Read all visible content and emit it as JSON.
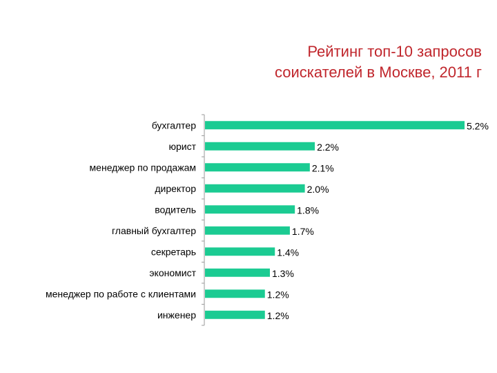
{
  "title_lines": [
    "Рейтинг топ-10 запросов",
    "соискателей в Москве, 2011 г"
  ],
  "colors": {
    "bar": "#1bcb92",
    "title": "#c0262c",
    "axis": "#9a9a9a",
    "text": "#000000"
  },
  "chart_data": {
    "type": "bar",
    "orientation": "horizontal",
    "title": "Рейтинг топ-10 запросов соискателей в Москве, 2011 г",
    "categories": [
      "бухгалтер",
      "юрист",
      "менеджер по продажам",
      "директор",
      "водитель",
      "главный бухгалтер",
      "секретарь",
      "экономист",
      "менеджер по работе с клиентами",
      "инженер"
    ],
    "values": [
      5.2,
      2.2,
      2.1,
      2.0,
      1.8,
      1.7,
      1.4,
      1.3,
      1.2,
      1.2
    ],
    "value_labels": [
      "5.2%",
      "2.2%",
      "2.1%",
      "2.0%",
      "1.8%",
      "1.7%",
      "1.4%",
      "1.3%",
      "1.2%",
      "1.2%"
    ],
    "xlim": [
      0,
      5.2
    ],
    "grid": false,
    "legend": "none"
  }
}
